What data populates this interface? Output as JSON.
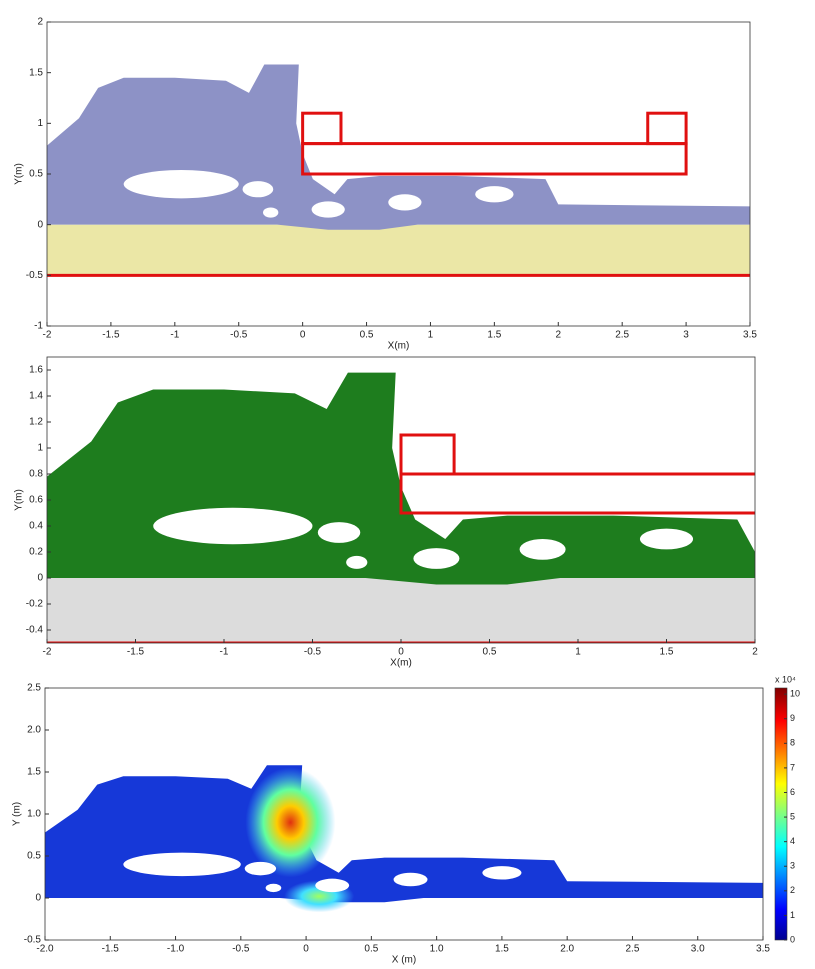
{
  "chart_data": [
    {
      "type": "particle-field",
      "xlabel": "X(m)",
      "ylabel": "Y(m)",
      "xlim": [
        -2,
        3.5
      ],
      "ylim": [
        -1,
        2
      ],
      "xticks": [
        -2,
        -1.5,
        -1,
        -0.5,
        0,
        0.5,
        1,
        1.5,
        2,
        2.5,
        3,
        3.5
      ],
      "yticks": [
        -1,
        -0.5,
        0,
        0.5,
        1,
        1.5,
        2
      ],
      "fluid_color": "#8d92c6",
      "bed_color": "#ebe7a6",
      "structure_color": "#e01010"
    },
    {
      "type": "particle-field",
      "xlabel": "X(m)",
      "ylabel": "Y(m)",
      "xlim": [
        -2,
        2
      ],
      "ylim": [
        -0.5,
        1.7
      ],
      "xticks": [
        -2,
        -1.5,
        -1,
        -0.5,
        0,
        0.5,
        1,
        1.5,
        2
      ],
      "yticks": [
        -0.4,
        -0.2,
        0,
        0.2,
        0.4,
        0.6,
        0.8,
        1,
        1.2,
        1.4,
        1.6
      ],
      "fluid_color": "#1e7d1e",
      "bed_color": "#dcdcdc",
      "structure_color": "#e01010"
    },
    {
      "type": "pressure-field",
      "xlabel": "X (m)",
      "ylabel": "Y (m)",
      "xlim": [
        -2,
        3.5
      ],
      "ylim": [
        -0.5,
        2.5
      ],
      "xticks": [
        {
          "value": -2,
          "label": "-2.0"
        },
        -1.5,
        {
          "value": -1,
          "label": "-1.0"
        },
        -0.5,
        0,
        0.5,
        {
          "value": 1,
          "label": "1.0"
        },
        1.5,
        {
          "value": 2,
          "label": "2.0"
        },
        2.5,
        {
          "value": 3,
          "label": "3.0"
        },
        3.5
      ],
      "yticks": [
        -0.5,
        0,
        0.5,
        {
          "value": 1,
          "label": "1.0"
        },
        1.5,
        {
          "value": 2,
          "label": "2.0"
        },
        2.5
      ],
      "fluid_color": "#1638d8",
      "colorbar": {
        "lim": [
          0,
          10.25
        ],
        "ticks": [
          0,
          1,
          2,
          3,
          4,
          5,
          6,
          7,
          8,
          9,
          10
        ],
        "multiplier": "x 10⁴"
      }
    }
  ]
}
